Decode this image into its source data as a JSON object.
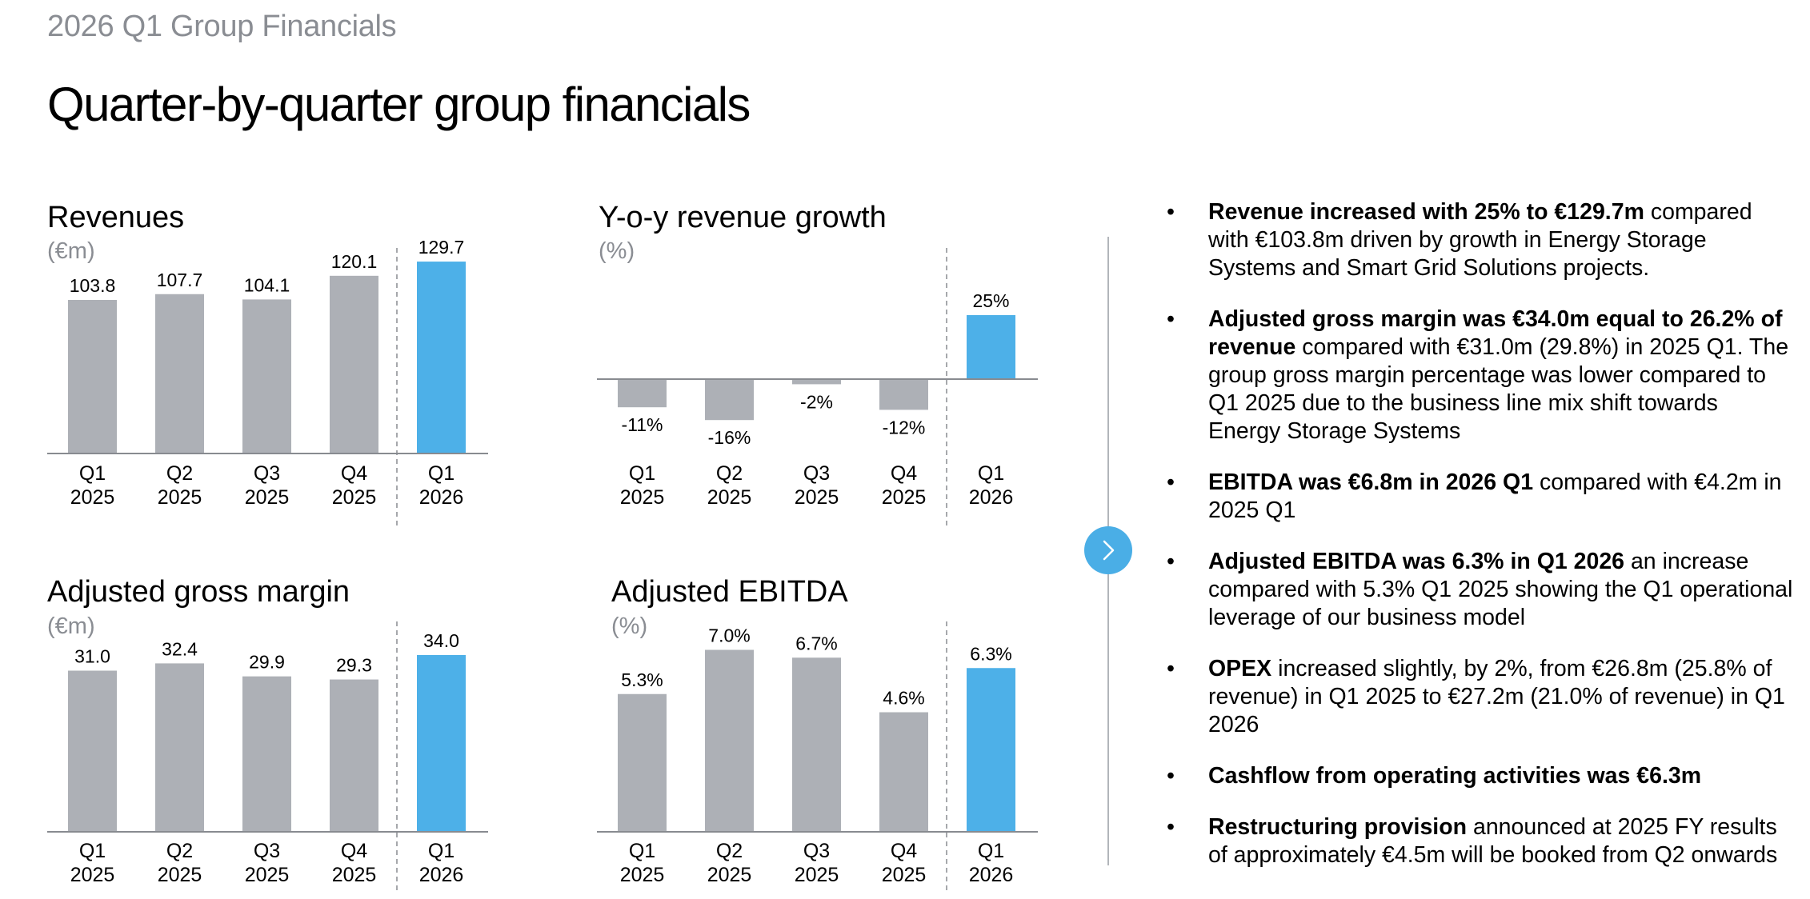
{
  "header": {
    "supertitle": "2026 Q1  Group Financials",
    "title": "Quarter-by-quarter group financials"
  },
  "colors": {
    "bar_grey": "#adb0b6",
    "bar_highlight": "#4db0e8",
    "axis": "#888b90",
    "unit_grey": "#8a8d93",
    "divider": "#b2b5ba",
    "arrow_button": "#4aaee6"
  },
  "navigation": {
    "next_icon": "chevron-right-icon"
  },
  "chart_data": [
    {
      "id": "revenues",
      "type": "bar",
      "title": "Revenues",
      "unit": "(€m)",
      "categories": [
        "Q1\n2025",
        "Q2\n2025",
        "Q3\n2025",
        "Q4\n2025",
        "Q1\n2026"
      ],
      "values": [
        103.8,
        107.7,
        104.1,
        120.1,
        129.7
      ],
      "value_labels": [
        "103.8",
        "107.7",
        "104.1",
        "120.1",
        "129.7"
      ],
      "highlight_index": 4,
      "ylim": [
        0,
        140
      ]
    },
    {
      "id": "yoy-growth",
      "type": "bar",
      "title": "Y-o-y revenue growth",
      "unit": "(%)",
      "categories": [
        "Q1\n2025",
        "Q2\n2025",
        "Q3\n2025",
        "Q4\n2025",
        "Q1\n2026"
      ],
      "values": [
        -11,
        -16,
        -2,
        -12,
        25
      ],
      "value_labels": [
        "-11%",
        "-16%",
        "-2%",
        "-12%",
        "25%"
      ],
      "highlight_index": 4,
      "ylim": [
        -20,
        30
      ]
    },
    {
      "id": "gross-margin",
      "type": "bar",
      "title": "Adjusted gross margin",
      "unit": "(€m)",
      "categories": [
        "Q1\n2025",
        "Q2\n2025",
        "Q3\n2025",
        "Q4\n2025",
        "Q1\n2026"
      ],
      "values": [
        31.0,
        32.4,
        29.9,
        29.3,
        34.0
      ],
      "value_labels": [
        "31.0",
        "32.4",
        "29.9",
        "29.3",
        "34.0"
      ],
      "highlight_index": 4,
      "ylim": [
        0,
        40
      ]
    },
    {
      "id": "ebitda",
      "type": "bar",
      "title": "Adjusted EBITDA",
      "unit": "(%)",
      "categories": [
        "Q1\n2025",
        "Q2\n2025",
        "Q3\n2025",
        "Q4\n2025",
        "Q1\n2026"
      ],
      "values": [
        5.3,
        7.0,
        6.7,
        4.6,
        6.3
      ],
      "value_labels": [
        "5.3%",
        "7.0%",
        "6.7%",
        "4.6%",
        "6.3%"
      ],
      "highlight_index": 4,
      "ylim": [
        0,
        8
      ]
    }
  ],
  "bullets": [
    {
      "bold": "Revenue increased with 25% to €129.7m",
      "text": " compared with €103.8m driven by growth in Energy Storage Systems and Smart Grid Solutions projects."
    },
    {
      "bold": "Adjusted gross margin was €34.0m equal to 26.2% of revenue",
      "text": " compared with €31.0m (29.8%) in 2025 Q1. The group gross margin percentage was lower compared to Q1 2025 due to the business line mix shift towards Energy Storage Systems"
    },
    {
      "bold": "EBITDA was €6.8m in 2026 Q1",
      "text": " compared with €4.2m in 2025 Q1"
    },
    {
      "bold": "Adjusted EBITDA was 6.3% in Q1 2026",
      "text": " an increase compared with 5.3% Q1 2025 showing the Q1 operational leverage of our business model"
    },
    {
      "bold": "OPEX",
      "text": " increased slightly, by 2%, from €26.8m (25.8% of revenue) in Q1 2025 to €27.2m (21.0% of revenue) in Q1 2026"
    },
    {
      "bold": "Cashflow from operating activities was €6.3m",
      "text": ""
    },
    {
      "bold": "Restructuring provision",
      "text": " announced at 2025 FY results of approximately €4.5m will be booked from Q2 onwards"
    }
  ]
}
